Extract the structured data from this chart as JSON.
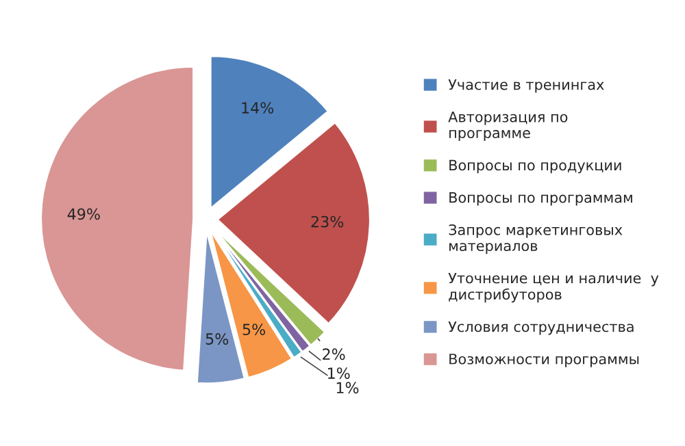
{
  "chart_data": {
    "type": "pie",
    "categories": [
      "Участие в тренингах",
      "Авторизация по\nпрограмме",
      "Вопросы по продукции",
      "Вопросы по программам",
      "Запрос маркетинговых\nматериалов",
      "Уточнение цен и наличие  у\nдистрибуторов",
      "Условия сотрудничества",
      "Возможности программы"
    ],
    "values": [
      14,
      23,
      2,
      1,
      1,
      5,
      5,
      49
    ],
    "value_labels": [
      "14%",
      "23%",
      "2%",
      "1%",
      "1%",
      "5%",
      "5%",
      "49%"
    ],
    "colors": [
      "#4f81bd",
      "#c0504d",
      "#9bbb59",
      "#8064a2",
      "#4bacc6",
      "#f79646",
      "#7b96c4",
      "#d99694"
    ],
    "legend": "right"
  }
}
